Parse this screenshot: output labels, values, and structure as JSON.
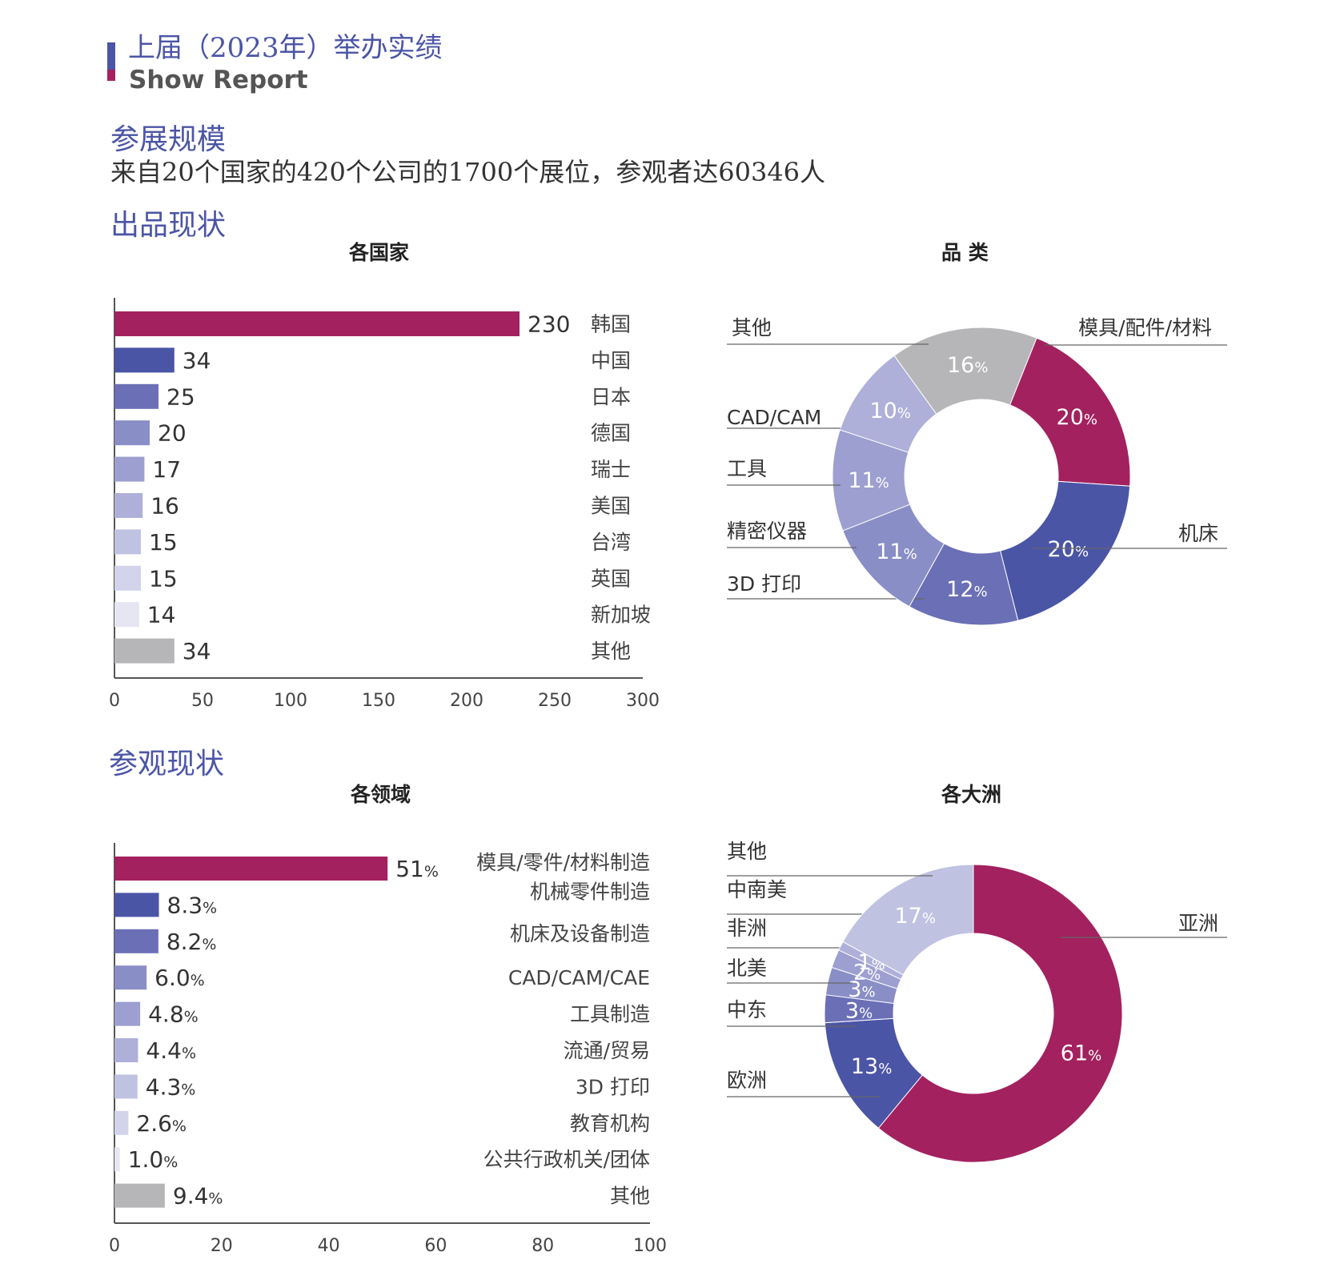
{
  "header": {
    "title_cn": "上届（2023年）举办实绩",
    "title_en": "Show Report"
  },
  "scale": {
    "heading": "参展规模",
    "summary": "来自20个国家的420个公司的1700个展位，参观者达60346人"
  },
  "exhibit": {
    "heading": "出品现状"
  },
  "visit": {
    "heading": "参观现状"
  },
  "colors": {
    "magenta": "#a3215f",
    "blue": "#4b55a6",
    "gray": "#b6b6b8",
    "purple_scale": [
      "#6b6fb5",
      "#8a8ec6",
      "#9c9fcf",
      "#aeb0d9",
      "#c0c2e2",
      "#d3d4eb",
      "#e6e6f3"
    ]
  },
  "chart_data": [
    {
      "type": "bar",
      "orientation": "horizontal",
      "title": "各国家",
      "categories": [
        "韩国",
        "中国",
        "日本",
        "德国",
        "瑞士",
        "美国",
        "台湾",
        "英国",
        "新加坡",
        "其他"
      ],
      "values": [
        230,
        34,
        25,
        20,
        17,
        16,
        15,
        15,
        14,
        34
      ],
      "value_labels": [
        "230",
        "34",
        "25",
        "20",
        "17",
        "16",
        "15",
        "15",
        "14",
        "34"
      ],
      "xlim": [
        0,
        300
      ],
      "xticks": [
        "0",
        "50",
        "100",
        "150",
        "200",
        "250",
        "300"
      ]
    },
    {
      "type": "pie",
      "donut": true,
      "title": "品 类",
      "slices": [
        {
          "label": "模具/配件/材料",
          "value": 20,
          "text": "20%"
        },
        {
          "label": "机床",
          "value": 20,
          "text": "20%"
        },
        {
          "label": "3D 打印",
          "value": 12,
          "text": "12%"
        },
        {
          "label": "精密仪器",
          "value": 11,
          "text": "11%"
        },
        {
          "label": "工具",
          "value": 11,
          "text": "11%"
        },
        {
          "label": "CAD/CAM",
          "value": 10,
          "text": "10%"
        },
        {
          "label": "其他",
          "value": 16,
          "text": "16%"
        }
      ]
    },
    {
      "type": "bar",
      "orientation": "horizontal",
      "title": "各领域",
      "categories": [
        "模具/零件/材料制造",
        "机械零件制造",
        "机床及设备制造",
        "CAD/CAM/CAE",
        "工具制造",
        "流通/贸易",
        "3D 打印",
        "教育机构",
        "公共行政机关/团体",
        "其他"
      ],
      "values": [
        51,
        8.3,
        8.2,
        6.0,
        4.8,
        4.4,
        4.3,
        2.6,
        1.0,
        9.4
      ],
      "value_labels": [
        "51",
        "8.3",
        "8.2",
        "6.0",
        "4.8",
        "4.4",
        "4.3",
        "2.6",
        "1.0",
        "9.4"
      ],
      "unit": "%",
      "xlim": [
        0,
        100
      ],
      "xticks": [
        "0",
        "20",
        "40",
        "60",
        "80",
        "100"
      ]
    },
    {
      "type": "pie",
      "donut": true,
      "title": "各大洲",
      "slices": [
        {
          "label": "亚洲",
          "value": 61,
          "text": "61%"
        },
        {
          "label": "欧洲",
          "value": 13,
          "text": "13%"
        },
        {
          "label": "中东",
          "value": 3,
          "text": "3%"
        },
        {
          "label": "北美",
          "value": 3,
          "text": "3%"
        },
        {
          "label": "非洲",
          "value": 2,
          "text": "2%"
        },
        {
          "label": "中南美",
          "value": 1,
          "text": "1%"
        },
        {
          "label": "其他",
          "value": 17,
          "text": "17%"
        }
      ]
    }
  ]
}
